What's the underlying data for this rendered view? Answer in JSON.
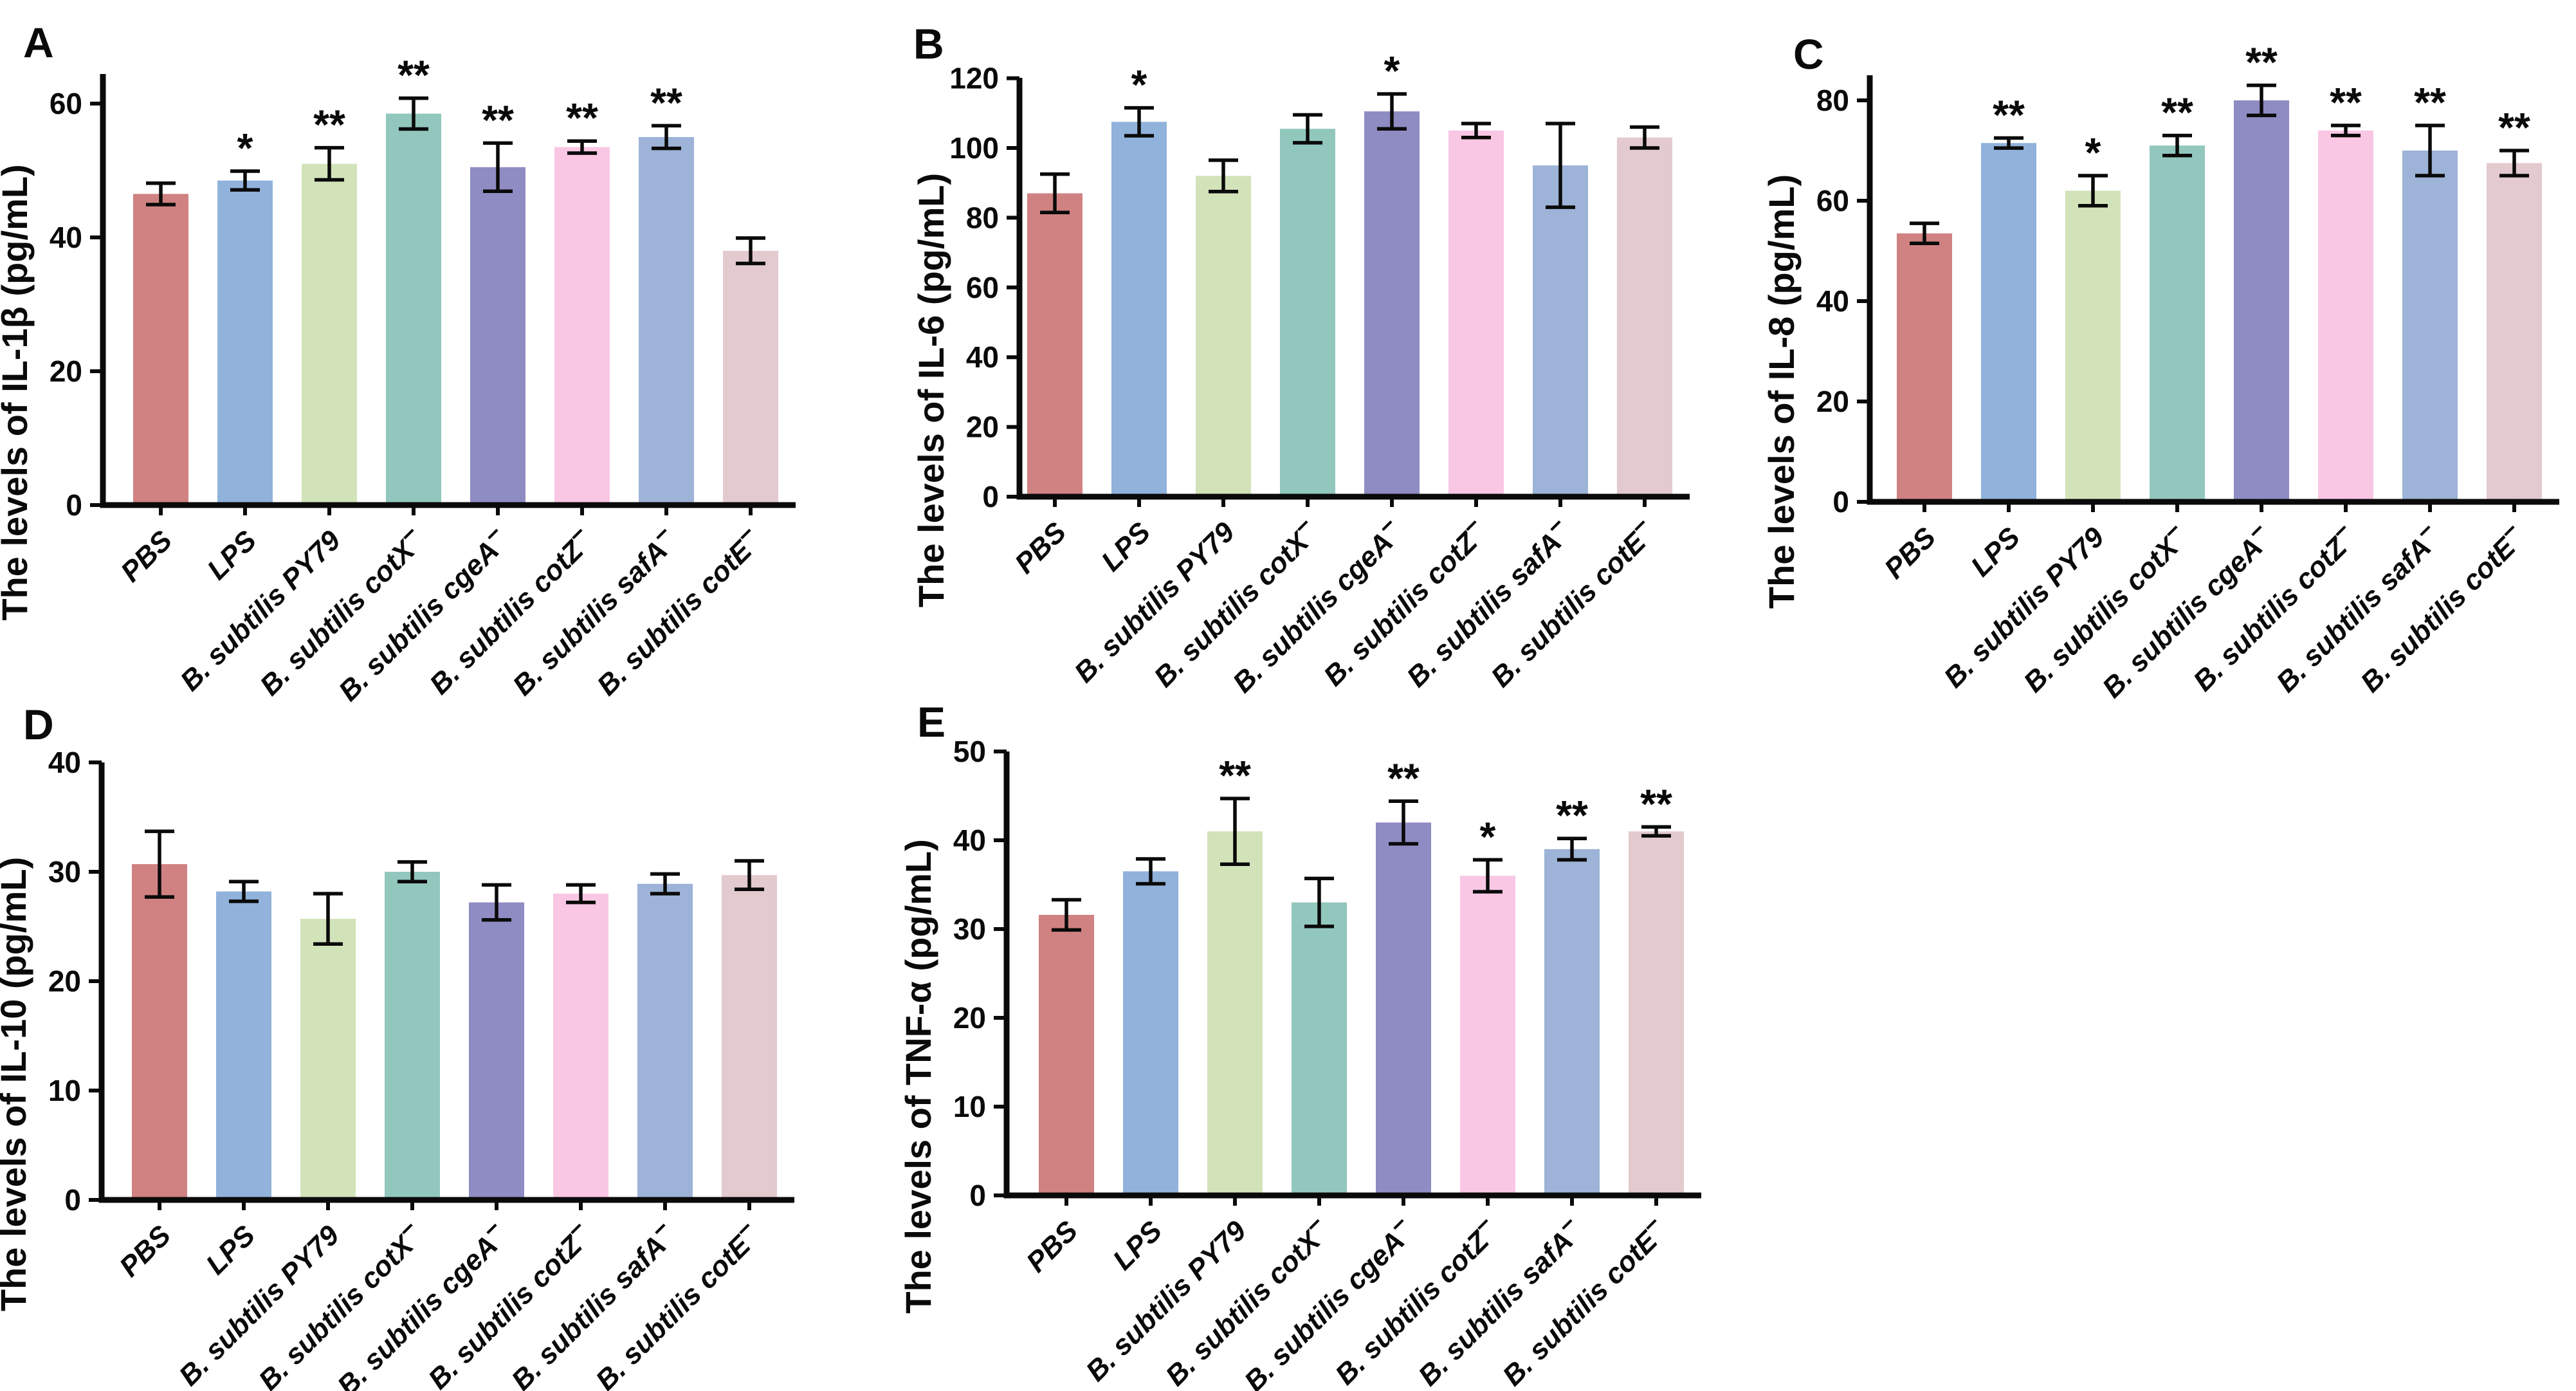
{
  "figure": {
    "background_color": "#ffffff",
    "axis_color": "#0a0a0a",
    "error_bar_color": "#0a0a0a",
    "significance_star_color": "#0a0a0a"
  },
  "categories": [
    {
      "text": "PBS",
      "sup": ""
    },
    {
      "text": "LPS",
      "sup": ""
    },
    {
      "text": "B. subtilis PY79",
      "sup": ""
    },
    {
      "text": "B. subtilis cotX",
      "sup": "−"
    },
    {
      "text": "B. subtilis cgeA",
      "sup": "−"
    },
    {
      "text": "B. subtilis cotZ",
      "sup": "−"
    },
    {
      "text": "B. subtilis safA",
      "sup": "−"
    },
    {
      "text": "B. subtilis cotE",
      "sup": "−"
    }
  ],
  "bar_colors": [
    "#d08181",
    "#90b2db",
    "#d2e3ba",
    "#92c7bd",
    "#8f8cc3",
    "#f9c7e4",
    "#9db3d7",
    "#e2cace"
  ],
  "chart_data": [
    {
      "type": "bar",
      "panel_letter": "A",
      "ylabel": "The levels of IL-1β (pg/mL)",
      "xlabel": "",
      "ylim": [
        0,
        64.5
      ],
      "yticks": [
        0,
        20,
        40,
        60
      ],
      "grid": false,
      "legend": "none",
      "values": [
        46.5,
        48.5,
        51,
        58.5,
        50.5,
        53.5,
        55,
        38
      ],
      "errors": [
        1.6,
        1.4,
        2.4,
        2.3,
        3.6,
        0.9,
        1.7,
        1.9
      ],
      "significance": [
        "",
        "*",
        "**",
        "**",
        "**",
        "**",
        "**",
        ""
      ]
    },
    {
      "type": "bar",
      "panel_letter": "B",
      "ylabel": "The levels of IL-6 (pg/mL)",
      "xlabel": "",
      "ylim": [
        0,
        120
      ],
      "yticks": [
        0,
        20,
        40,
        60,
        80,
        100,
        120
      ],
      "grid": false,
      "legend": "none",
      "values": [
        87,
        107.5,
        92,
        105.5,
        110.5,
        105,
        95,
        103
      ],
      "errors": [
        5.5,
        4,
        4.5,
        4,
        5,
        2,
        12,
        3
      ],
      "significance": [
        "",
        "*",
        "",
        "",
        "*",
        "",
        "",
        ""
      ]
    },
    {
      "type": "bar",
      "panel_letter": "C",
      "ylabel": "The levels of IL-8 (pg/mL)",
      "xlabel": "",
      "ylim": [
        0,
        85
      ],
      "yticks": [
        0,
        20,
        40,
        60,
        80
      ],
      "grid": false,
      "legend": "none",
      "values": [
        53.5,
        71.5,
        62,
        71,
        80,
        74,
        70,
        67.5
      ],
      "errors": [
        2,
        1,
        3,
        2,
        3,
        1,
        5,
        2.5
      ],
      "significance": [
        "",
        "**",
        "*",
        "**",
        "**",
        "**",
        "**",
        "**"
      ]
    },
    {
      "type": "bar",
      "panel_letter": "D",
      "ylabel": "The levels of IL-10 (pg/mL)",
      "xlabel": "",
      "ylim": [
        0,
        40
      ],
      "yticks": [
        0,
        10,
        20,
        30,
        40
      ],
      "grid": false,
      "legend": "none",
      "values": [
        30.7,
        28.2,
        25.7,
        30,
        27.2,
        28,
        28.9,
        29.7
      ],
      "errors": [
        3,
        0.9,
        2.3,
        0.9,
        1.6,
        0.8,
        0.9,
        1.3
      ],
      "significance": [
        "",
        "",
        "",
        "",
        "",
        "",
        "",
        ""
      ]
    },
    {
      "type": "bar",
      "panel_letter": "E",
      "ylabel": "The levels of TNF-α (pg/mL)",
      "xlabel": "",
      "ylim": [
        0,
        50
      ],
      "yticks": [
        0,
        10,
        20,
        30,
        40,
        50
      ],
      "grid": false,
      "legend": "none",
      "values": [
        31.6,
        36.5,
        41,
        33,
        42,
        36,
        39,
        41
      ],
      "errors": [
        1.7,
        1.4,
        3.7,
        2.7,
        2.4,
        1.8,
        1.2,
        0.5
      ],
      "significance": [
        "",
        "",
        "**",
        "",
        "**",
        "*",
        "**",
        "**"
      ]
    }
  ]
}
